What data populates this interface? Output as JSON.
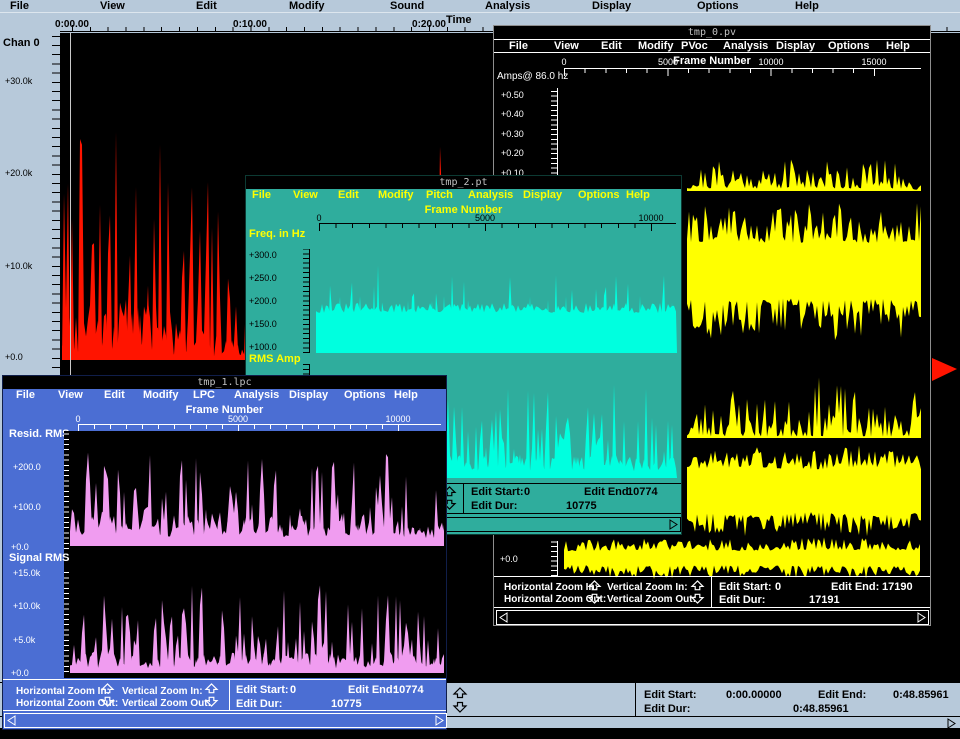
{
  "edit_labels": {
    "start": "Edit Start:",
    "end": "Edit End:",
    "dur": "Edit Dur:"
  },
  "zoom_controls": {
    "h_in": "Horizontal Zoom In:",
    "h_out": "Horizontal Zoom Out:",
    "v_in": "Vertical Zoom In:",
    "v_out": "Vertical Zoom Out:"
  },
  "main_window": {
    "menu": [
      "File",
      "View",
      "Edit",
      "Modify",
      "Sound",
      "Analysis",
      "Display",
      "Options",
      "Help"
    ],
    "time_label": "Time",
    "time_ticks": [
      "0:00.00",
      "0:10.00",
      "0:20.00"
    ],
    "channel_label": "Chan 0",
    "y_labels": [
      "+30.0k",
      "+20.0k",
      "+10.0k",
      "+0.0"
    ],
    "edit": {
      "start": "0:00.00000",
      "end": "0:48.85961",
      "dur": "0:48.85961"
    },
    "waveform_color": "#ff1400",
    "background": "#b7c9da"
  },
  "pv_window": {
    "title": "tmp_0.pv",
    "menu": [
      "File",
      "View",
      "Edit",
      "Modify",
      "PVoc",
      "Analysis",
      "Display",
      "Options",
      "Help"
    ],
    "frame_label": "Frame Number",
    "x_ticks": [
      "0",
      "5000",
      "10000",
      "15000"
    ],
    "amp_label": "Amps@ 86.0 hz",
    "y_labels": [
      "+0.50",
      "+0.40",
      "+0.30",
      "+0.20",
      "+0.10"
    ],
    "y_zero": "+0.0",
    "edit": {
      "start": "0",
      "end": "17190",
      "dur": "17191"
    },
    "waveform_color": "#ffff00",
    "background": "#000000"
  },
  "pt_window": {
    "title": "tmp_2.pt",
    "menu": [
      "File",
      "View",
      "Edit",
      "Modify",
      "Pitch",
      "Analysis",
      "Display",
      "Options",
      "Help"
    ],
    "frame_label": "Frame Number",
    "x_ticks": [
      "0",
      "5000",
      "10000"
    ],
    "freq_label": "Freq. in Hz",
    "freq_y_labels": [
      "+300.0",
      "+250.0",
      "+200.0",
      "+150.0",
      "+100.0"
    ],
    "rms_label": "RMS Amp",
    "edit": {
      "start": "0",
      "end": "10774",
      "dur": "10775"
    },
    "waveform_color": "#00ffdf",
    "menu_color": "#ffff00",
    "background": "#2fad9d"
  },
  "lpc_window": {
    "title": "tmp_1.lpc",
    "menu": [
      "File",
      "View",
      "Edit",
      "Modify",
      "LPC",
      "Analysis",
      "Display",
      "Options",
      "Help"
    ],
    "frame_label": "Frame Number",
    "x_ticks": [
      "0",
      "5000",
      "10000"
    ],
    "resid_label": "Resid. RMS",
    "resid_y_labels": [
      "+200.0",
      "+100.0",
      "+0.0"
    ],
    "signal_label": "Signal RMS",
    "signal_y_labels": [
      "+15.0k",
      "+10.0k",
      "+5.0k",
      "+0.0"
    ],
    "edit": {
      "start": "0",
      "end": "10774",
      "dur": "10775"
    },
    "waveform_color": "#f09cf0",
    "background": "#4b6ed3"
  }
}
